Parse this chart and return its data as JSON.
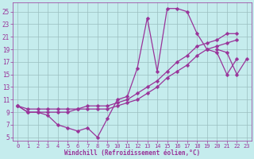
{
  "xlabel": "Windchill (Refroidissement éolien,°C)",
  "bg_color": "#c5eced",
  "line_color": "#993399",
  "markersize": 2.5,
  "linewidth": 0.9,
  "xlim": [
    -0.5,
    23.5
  ],
  "ylim": [
    4.5,
    26.5
  ],
  "xticks": [
    0,
    1,
    2,
    3,
    4,
    5,
    6,
    7,
    8,
    9,
    10,
    11,
    12,
    13,
    14,
    15,
    16,
    17,
    18,
    19,
    20,
    21,
    22,
    23
  ],
  "yticks": [
    5,
    7,
    9,
    11,
    13,
    15,
    17,
    19,
    21,
    23,
    25
  ],
  "grid_color": "#9bbfc0",
  "tick_color": "#993399",
  "lines": [
    {
      "x": [
        0,
        1,
        2,
        3,
        4,
        5,
        6,
        7,
        8,
        9,
        10,
        11,
        12,
        13,
        14,
        15,
        16,
        17,
        18,
        19,
        20,
        21,
        22,
        23
      ],
      "y": [
        10,
        9,
        9,
        8.5,
        7,
        6.5,
        6,
        6.5,
        5,
        8,
        11,
        11.5,
        16,
        24,
        15.5,
        25.5,
        25.5,
        25,
        21.5,
        19,
        18.5,
        15,
        17.5,
        null
      ]
    },
    {
      "x": [
        0,
        1,
        2,
        3,
        4,
        5,
        6,
        7,
        8,
        9,
        10,
        11,
        12,
        13,
        14,
        15,
        16,
        17,
        18,
        19,
        20,
        21,
        22,
        23
      ],
      "y": [
        10,
        9.5,
        9.5,
        9.5,
        9.5,
        9.5,
        9.5,
        10,
        10,
        10,
        10.5,
        11,
        12,
        13,
        14,
        15.5,
        17,
        18,
        19.5,
        20,
        20.5,
        21.5,
        21.5,
        null
      ]
    },
    {
      "x": [
        0,
        1,
        2,
        3,
        4,
        5,
        6,
        7,
        8,
        9,
        10,
        11,
        12,
        13,
        14,
        15,
        16,
        17,
        18,
        19,
        20,
        21,
        22,
        23
      ],
      "y": [
        10,
        9,
        9,
        9,
        9,
        9,
        9.5,
        9.5,
        9.5,
        9.5,
        10,
        10.5,
        11,
        12,
        13,
        14.5,
        15.5,
        16.5,
        18,
        19,
        19.5,
        20,
        20.5,
        null
      ]
    },
    {
      "x": [
        20,
        21,
        22,
        23
      ],
      "y": [
        19,
        18.5,
        15,
        17.5
      ]
    }
  ]
}
